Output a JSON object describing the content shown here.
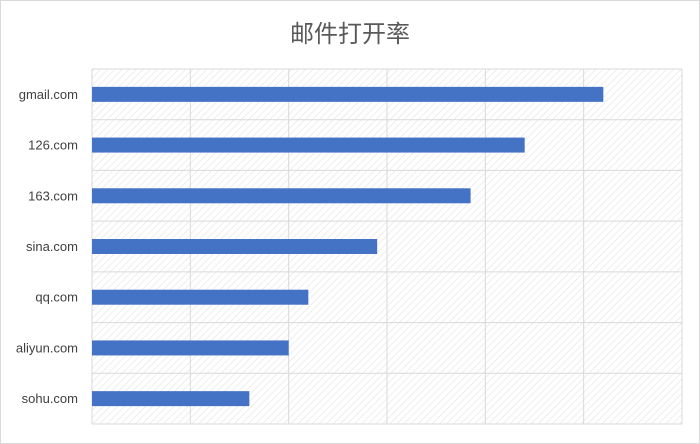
{
  "chart_data": {
    "type": "bar",
    "orientation": "horizontal",
    "title": "邮件打开率",
    "xlabel": "",
    "ylabel": "",
    "categories": [
      "gmail.com",
      "126.com",
      "163.com",
      "sina.com",
      "qq.com",
      "aliyun.com",
      "sohu.com"
    ],
    "values": [
      52,
      44,
      38.5,
      29,
      22,
      20,
      16
    ],
    "xlim": [
      0,
      60
    ],
    "grid": true,
    "legend": "none",
    "colors": {
      "bar": "#4472c4",
      "grid": "#d9d9d9",
      "hatch": "#e3e3e3"
    }
  }
}
